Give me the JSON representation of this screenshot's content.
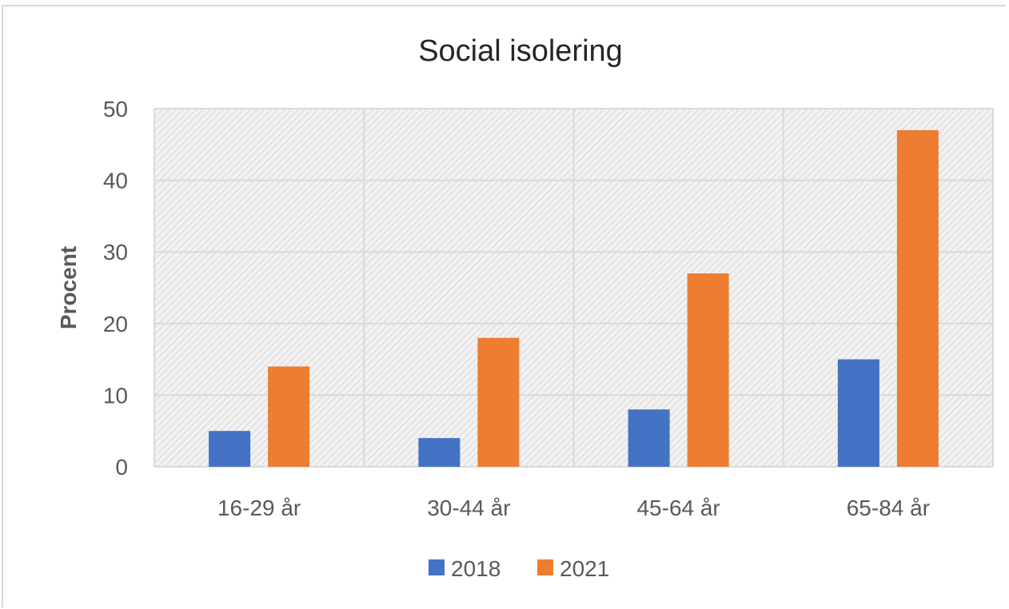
{
  "chart_data": {
    "type": "bar",
    "title": "Social isolering",
    "xlabel": "",
    "ylabel": "Procent",
    "categories": [
      "16-29 år",
      "30-44 år",
      "45-64 år",
      "65-84 år"
    ],
    "series": [
      {
        "name": "2018",
        "values": [
          5,
          4,
          8,
          15
        ],
        "color": "#4472c4"
      },
      {
        "name": "2021",
        "values": [
          14,
          18,
          27,
          47
        ],
        "color": "#ed7d31"
      }
    ],
    "ylim": [
      0,
      50
    ],
    "yticks": [
      "0",
      "10",
      "20",
      "30",
      "40",
      "50"
    ],
    "grid": true,
    "legend_position": "bottom"
  }
}
